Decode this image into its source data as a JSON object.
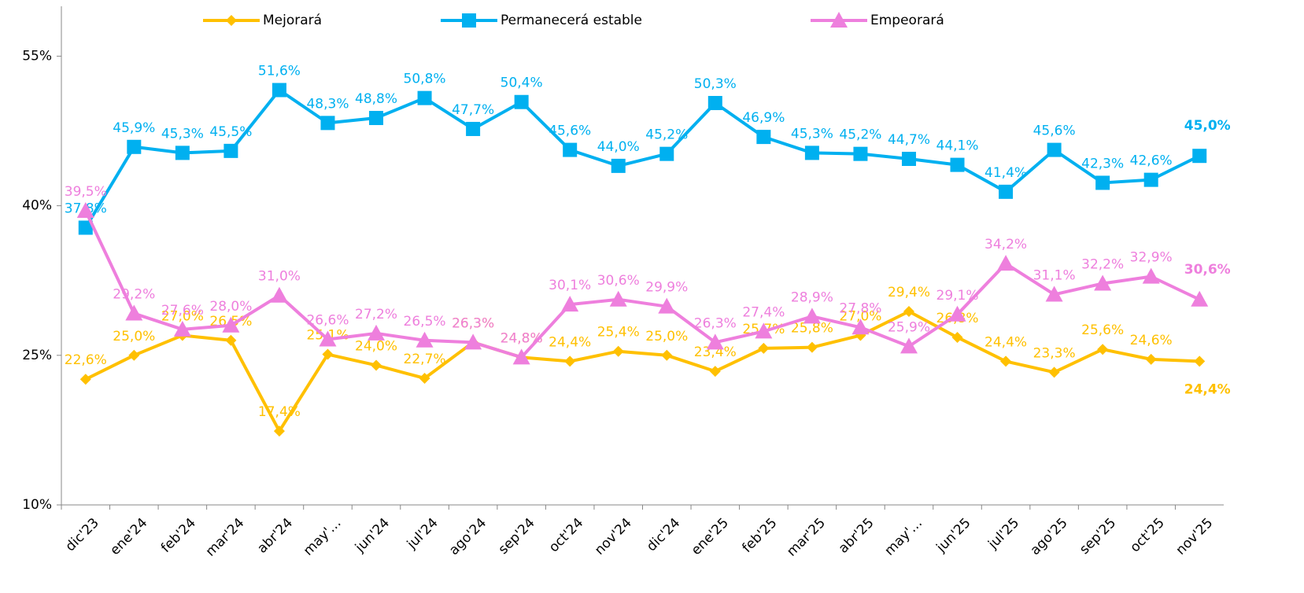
{
  "chart_data": {
    "type": "line",
    "categories": [
      "dic'23",
      "ene'24",
      "feb'24",
      "mar'24",
      "abr'24",
      "may'…",
      "jun'24",
      "jul'24",
      "ago'24",
      "sep'24",
      "oct'24",
      "nov'24",
      "dic'24",
      "ene'25",
      "feb'25",
      "mar'25",
      "abr'25",
      "may'…",
      "jun'25",
      "jul'25",
      "ago'25",
      "sep'25",
      "oct'25",
      "nov'25"
    ],
    "series": [
      {
        "name": "Mejorará",
        "color": "#FFC000",
        "marker": "diamond",
        "values": [
          22.6,
          25.0,
          27.0,
          26.5,
          17.4,
          25.1,
          24.0,
          22.7,
          26.3,
          24.8,
          24.4,
          25.4,
          25.0,
          23.4,
          25.7,
          25.8,
          27.0,
          29.4,
          26.8,
          24.4,
          23.3,
          25.6,
          24.6,
          24.4
        ],
        "value_labels": [
          "22,6%",
          "25,0%",
          "27,0%",
          "26,5%",
          "17,4%",
          "25,1%",
          "24,0%",
          "22,7%",
          "26,3%",
          "24,8%",
          "24,4%",
          "25,4%",
          "25,0%",
          "23,4%",
          "25,7%",
          "25,8%",
          "27,0%",
          "29,4%",
          "26,8%",
          "24,4%",
          "23,3%",
          "25,6%",
          "24,6%",
          "24,4%"
        ]
      },
      {
        "name": "Permanecerá estable",
        "color": "#00B0F0",
        "marker": "square",
        "values": [
          37.8,
          45.9,
          45.3,
          45.5,
          51.6,
          48.3,
          48.8,
          50.8,
          47.7,
          50.4,
          45.6,
          44.0,
          45.2,
          50.3,
          46.9,
          45.3,
          45.2,
          44.7,
          44.1,
          41.4,
          45.6,
          42.3,
          42.6,
          45.0
        ],
        "value_labels": [
          "37,8%",
          "45,9%",
          "45,3%",
          "45,5%",
          "51,6%",
          "48,3%",
          "48,8%",
          "50,8%",
          "47,7%",
          "50,4%",
          "45,6%",
          "44,0%",
          "45,2%",
          "50,3%",
          "46,9%",
          "45,3%",
          "45,2%",
          "44,7%",
          "44,1%",
          "41,4%",
          "45,6%",
          "42,3%",
          "42,6%",
          "45,0%"
        ]
      },
      {
        "name": "Empeorará",
        "color": "#EE7FDD",
        "marker": "triangle",
        "values": [
          39.5,
          29.2,
          27.6,
          28.0,
          31.0,
          26.6,
          27.2,
          26.5,
          26.3,
          24.8,
          30.1,
          30.6,
          29.9,
          26.3,
          27.4,
          28.9,
          27.8,
          25.9,
          29.1,
          34.2,
          31.1,
          32.2,
          32.9,
          30.6
        ],
        "value_labels": [
          "39,5%",
          "29,2%",
          "27,6%",
          "28,0%",
          "31,0%",
          "26,6%",
          "27,2%",
          "26,5%",
          "26,3%",
          "24,8%",
          "30,1%",
          "30,6%",
          "29,9%",
          "26,3%",
          "27,4%",
          "28,9%",
          "27,8%",
          "25,9%",
          "29,1%",
          "34,2%",
          "31,1%",
          "32,2%",
          "32,9%",
          "30,6%"
        ]
      }
    ],
    "ylim": [
      10,
      60
    ],
    "yticks": [
      {
        "value": 10,
        "label": "10%"
      },
      {
        "value": 25,
        "label": "25%"
      },
      {
        "value": 40,
        "label": "40%"
      },
      {
        "value": 55,
        "label": "55%"
      }
    ],
    "legend": "top"
  }
}
